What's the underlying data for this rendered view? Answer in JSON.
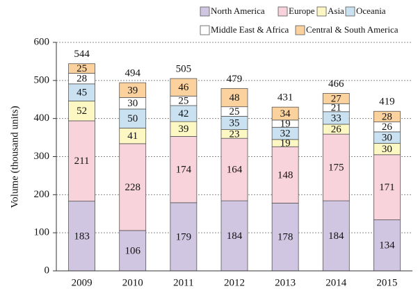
{
  "chart_data": {
    "type": "stacked_bar",
    "y_label": "Volume (thousand units)",
    "categories": [
      "2009",
      "2010",
      "2011",
      "2012",
      "2013",
      "2014",
      "2015"
    ],
    "series": [
      {
        "name": "North America",
        "color": "#d0c6e1",
        "values": [
          183,
          106,
          179,
          184,
          178,
          184,
          134
        ]
      },
      {
        "name": "Europe",
        "color": "#f8d3db",
        "values": [
          211,
          228,
          174,
          164,
          148,
          175,
          171
        ]
      },
      {
        "name": "Asia",
        "color": "#fdf7c3",
        "values": [
          52,
          41,
          39,
          23,
          19,
          26,
          30
        ]
      },
      {
        "name": "Oceania",
        "color": "#c9e1f1",
        "values": [
          45,
          50,
          42,
          35,
          32,
          33,
          30
        ]
      },
      {
        "name": "Middle East & Africa",
        "color": "#ffffff",
        "values": [
          28,
          30,
          25,
          25,
          19,
          21,
          26
        ]
      },
      {
        "name": "Central & South America",
        "color": "#fbd29e",
        "values": [
          25,
          39,
          46,
          48,
          34,
          27,
          28
        ]
      }
    ],
    "totals": [
      544,
      494,
      505,
      479,
      431,
      466,
      419
    ],
    "ylim": [
      0,
      600
    ],
    "yticks": [
      0,
      100,
      200,
      300,
      400,
      500,
      600
    ],
    "grid": true
  }
}
